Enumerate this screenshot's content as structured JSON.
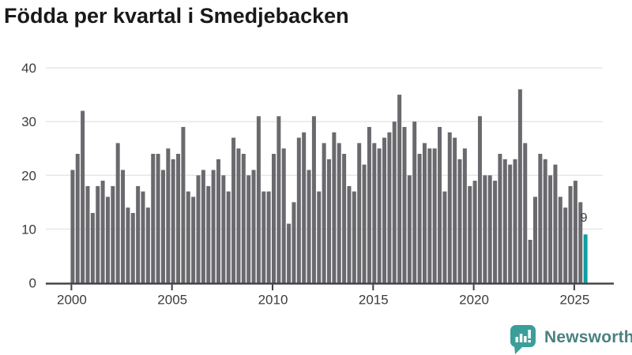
{
  "title": "Födda per kvartal i Smedjebacken",
  "chart_data": {
    "type": "bar",
    "title": "Födda per kvartal i Smedjebacken",
    "x_start_year": 2000,
    "x_start_quarter": 1,
    "x_end_year": 2025,
    "x_end_quarter": 3,
    "values": [
      21,
      24,
      32,
      18,
      13,
      18,
      19,
      16,
      18,
      26,
      21,
      14,
      13,
      18,
      17,
      14,
      24,
      24,
      21,
      25,
      23,
      24,
      29,
      17,
      16,
      20,
      21,
      18,
      21,
      23,
      20,
      17,
      27,
      25,
      24,
      20,
      21,
      31,
      17,
      17,
      24,
      31,
      25,
      11,
      15,
      27,
      28,
      21,
      31,
      17,
      26,
      23,
      28,
      26,
      24,
      18,
      17,
      26,
      22,
      29,
      26,
      25,
      27,
      28,
      30,
      35,
      29,
      20,
      30,
      24,
      26,
      25,
      25,
      29,
      17,
      28,
      27,
      23,
      25,
      18,
      19,
      31,
      20,
      20,
      19,
      24,
      23,
      22,
      23,
      36,
      26,
      8,
      16,
      24,
      23,
      20,
      22,
      16,
      14,
      18,
      19,
      15,
      9
    ],
    "ylim": [
      0,
      40
    ],
    "y_ticks": [
      "0",
      "10",
      "20",
      "30",
      "40"
    ],
    "x_ticks": [
      {
        "label": "2000",
        "index": 0
      },
      {
        "label": "2005",
        "index": 20
      },
      {
        "label": "2010",
        "index": 40
      },
      {
        "label": "2015",
        "index": 60
      },
      {
        "label": "2020",
        "index": 80
      },
      {
        "label": "2025",
        "index": 100
      }
    ],
    "grid": "horizontal",
    "legend": "none",
    "bar_color": "#69696e",
    "highlight_color": "#0d9fa2",
    "highlight_last_bar": true,
    "last_bar_label": "9"
  },
  "branding": {
    "logo_text": "Newsworthy",
    "logo_icon": "newsworthy-speech-bubble-chart-icon",
    "logo_icon_color": "#3b9e99",
    "logo_text_color": "#4b8080"
  }
}
